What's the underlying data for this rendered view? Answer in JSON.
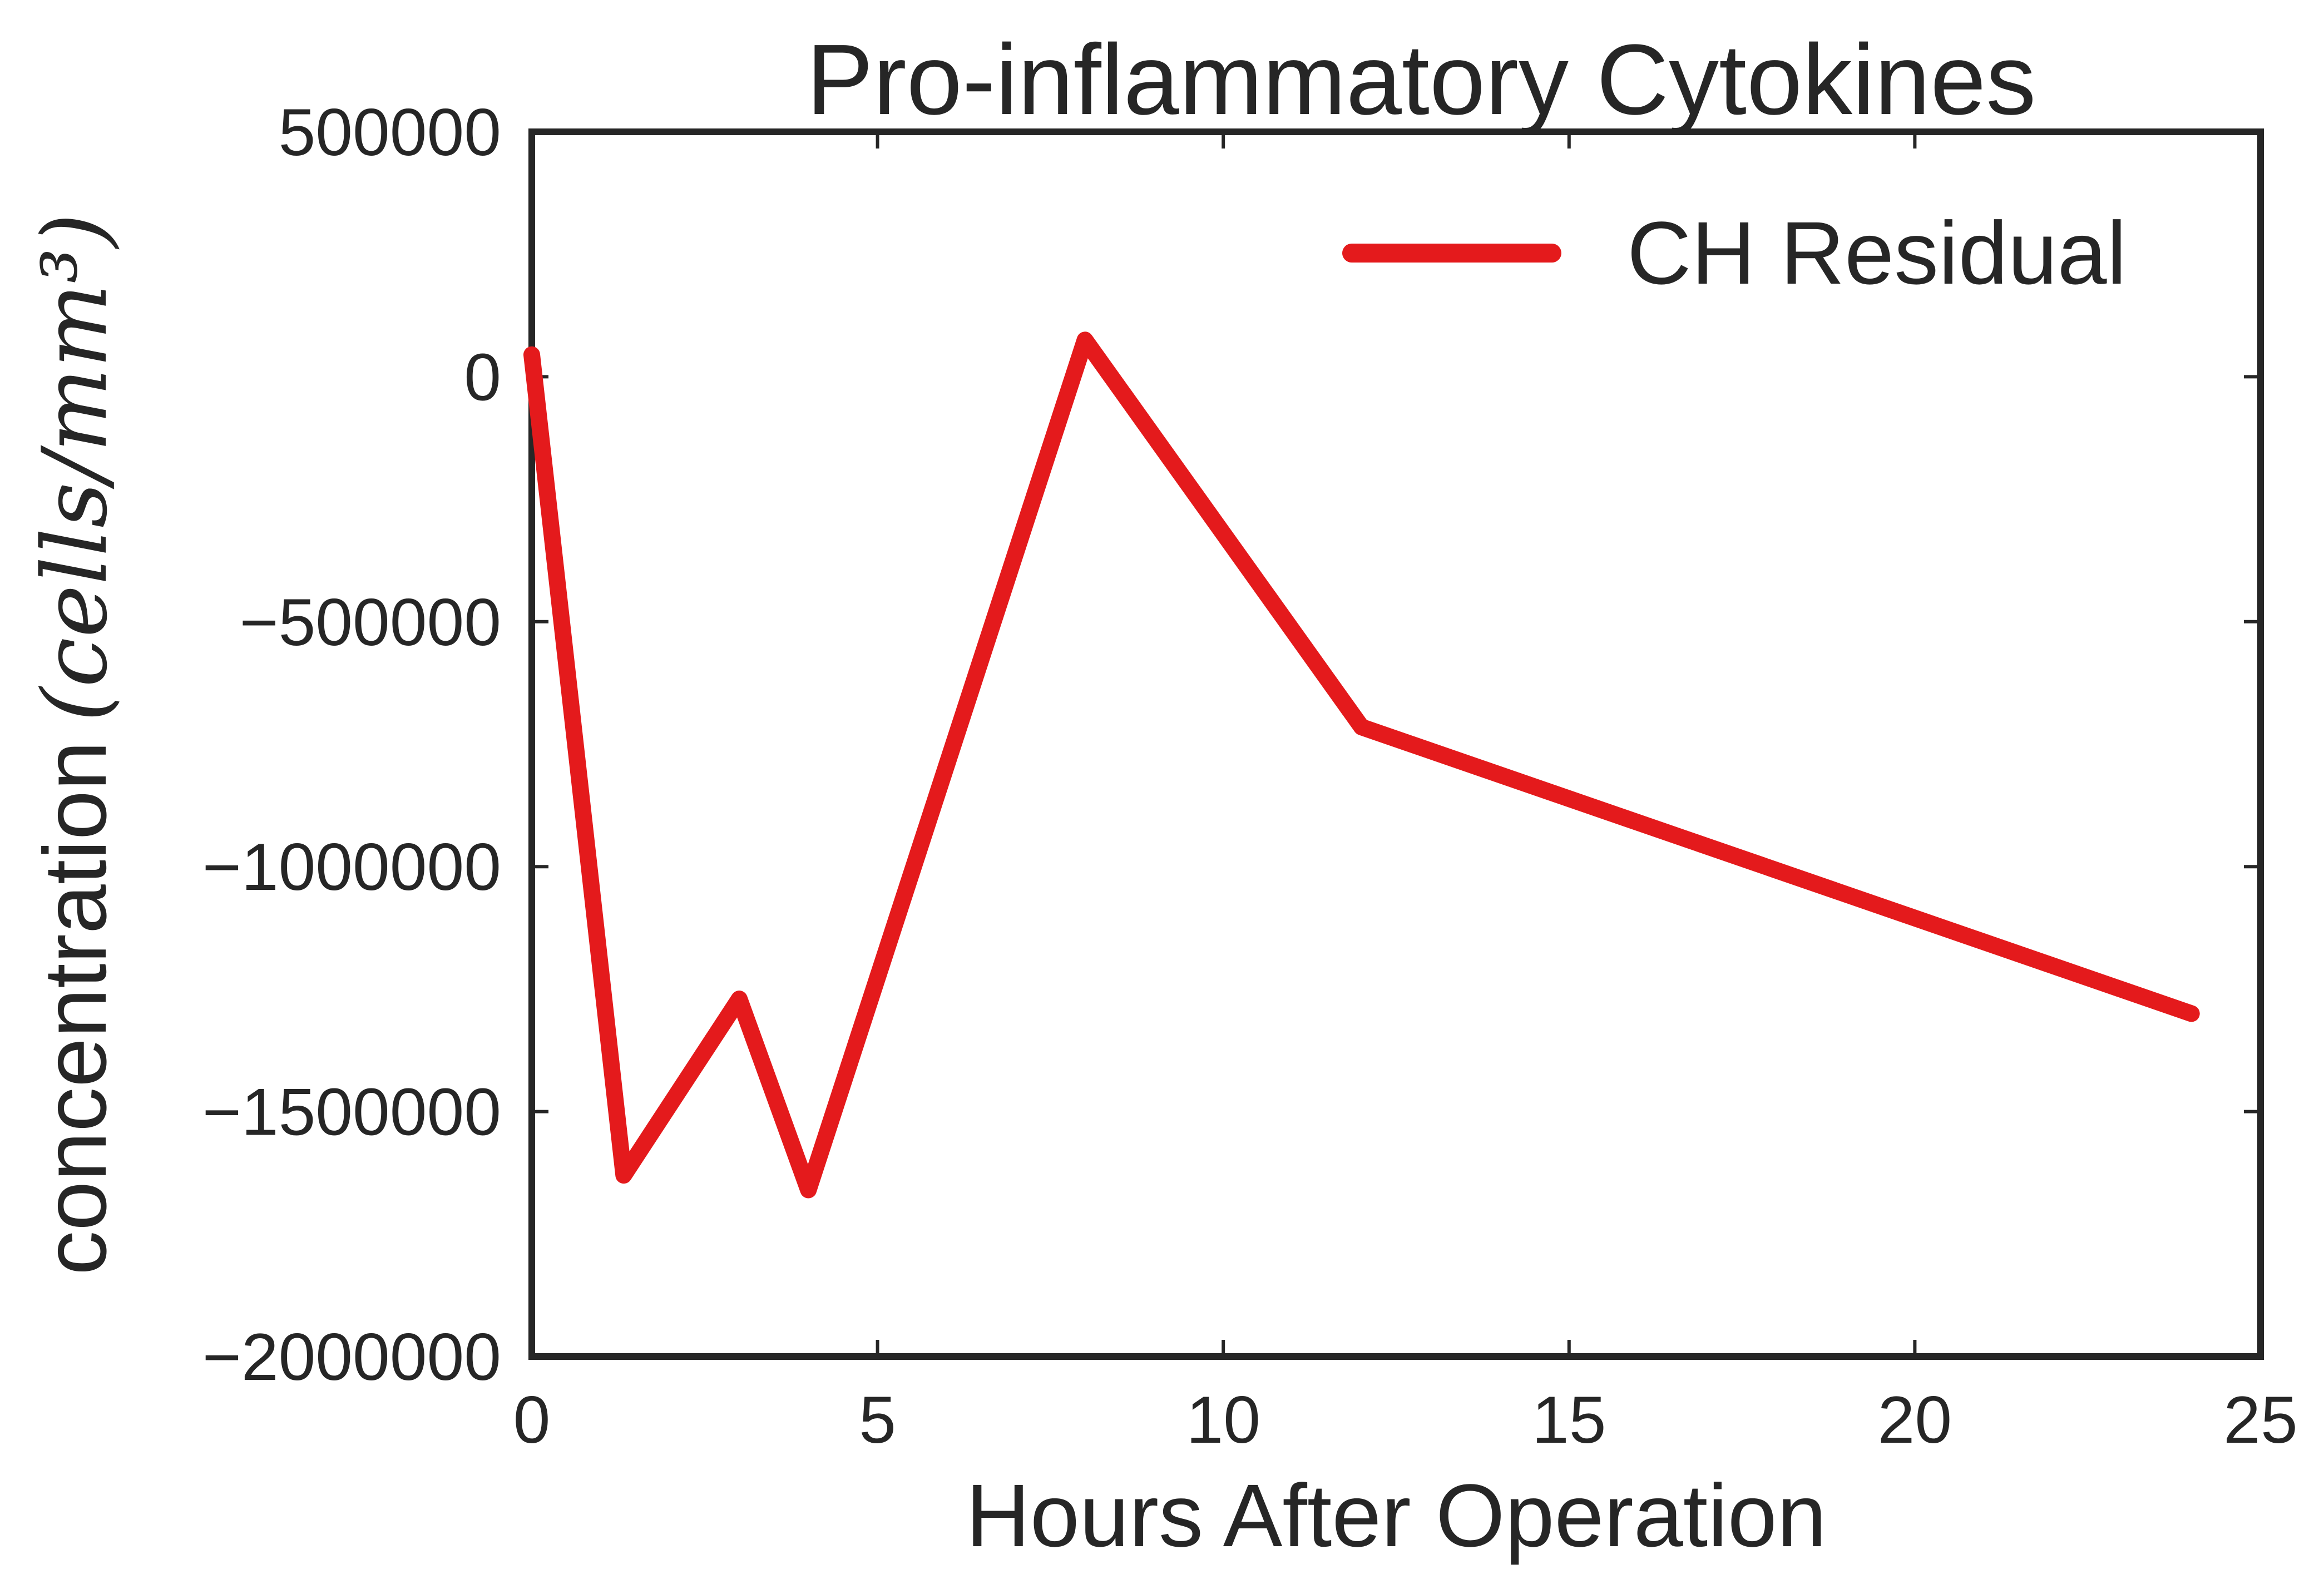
{
  "chart_data": {
    "type": "line",
    "title": "Pro-inflammatory Cytokines",
    "xlabel": "Hours After Operation",
    "ylabel_prefix": "concentration",
    "ylabel_unit": "(cells/mm³)",
    "xlim": [
      0,
      25
    ],
    "ylim": [
      -2000000,
      500000
    ],
    "x_ticks": [
      0,
      5,
      10,
      15,
      20,
      25
    ],
    "x_tick_labels": [
      "0",
      "5",
      "10",
      "15",
      "20",
      "25"
    ],
    "y_ticks": [
      500000,
      0,
      -500000,
      -1000000,
      -1500000,
      -2000000
    ],
    "y_tick_labels": [
      "500000",
      "0",
      "−500000",
      "−1000000",
      "−1500000",
      "−2000000"
    ],
    "grid": false,
    "legend_position": "top-right",
    "series": [
      {
        "name": "CH Residual",
        "color": "#e41a1c",
        "x": [
          0,
          1.33,
          3,
          4,
          8,
          12,
          24
        ],
        "y": [
          45000,
          -1630000,
          -1270000,
          -1660000,
          75000,
          -715000,
          -1300000
        ]
      }
    ]
  }
}
